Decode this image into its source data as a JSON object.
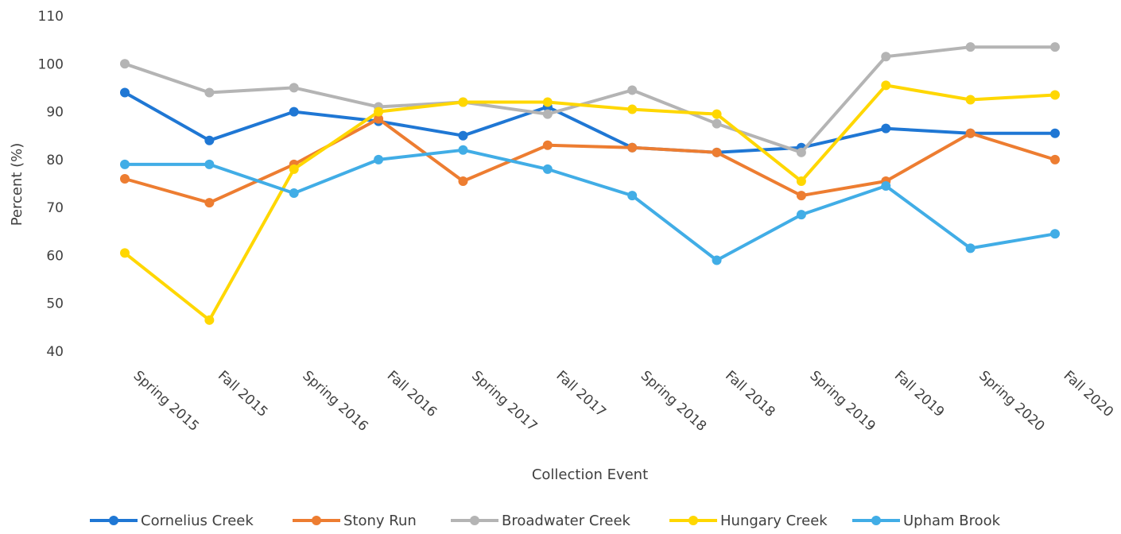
{
  "chart_data": {
    "type": "line",
    "title": "",
    "xlabel": "Collection Event",
    "ylabel": "Percent (%)",
    "ylim": [
      40,
      110
    ],
    "ytick_step": 10,
    "grid": false,
    "legend_position": "bottom",
    "categories": [
      "Spring 2015",
      "Fall 2015",
      "Spring 2016",
      "Fall 2016",
      "Spring 2017",
      "Fall 2017",
      "Spring 2018",
      "Fall 2018",
      "Spring 2019",
      "Fall 2019",
      "Spring 2020",
      "Fall 2020"
    ],
    "series": [
      {
        "name": "Cornelius Creek",
        "color": "#1f77d4",
        "values": [
          94,
          84,
          90,
          88,
          85,
          91,
          82.5,
          81.5,
          82.5,
          86.5,
          85.5,
          85.5
        ]
      },
      {
        "name": "Stony Run",
        "color": "#ed7d31",
        "values": [
          76,
          71,
          79,
          88.5,
          75.5,
          83,
          82.5,
          81.5,
          72.5,
          75.5,
          85.5,
          80
        ]
      },
      {
        "name": "Broadwater Creek",
        "color": "#b4b4b4",
        "values": [
          100,
          94,
          95,
          91,
          92,
          89.5,
          94.5,
          87.5,
          81.5,
          101.5,
          103.5,
          103.5
        ]
      },
      {
        "name": "Hungary Creek",
        "color": "#ffd700",
        "values": [
          60.5,
          46.5,
          78,
          90,
          92,
          92,
          90.5,
          89.5,
          75.5,
          95.5,
          92.5,
          93.5
        ]
      },
      {
        "name": "Upham Brook",
        "color": "#41ade6",
        "values": [
          79,
          79,
          73,
          80,
          82,
          78,
          72.5,
          59,
          68.5,
          74.5,
          61.5,
          64.5
        ]
      }
    ]
  }
}
